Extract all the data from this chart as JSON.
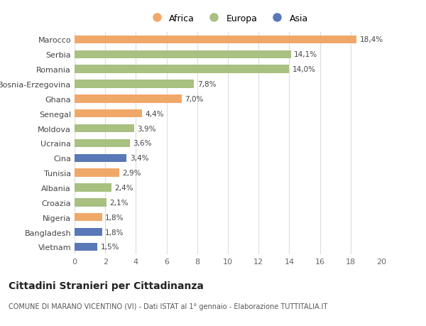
{
  "countries": [
    "Marocco",
    "Serbia",
    "Romania",
    "Bosnia-Erzegovina",
    "Ghana",
    "Senegal",
    "Moldova",
    "Ucraina",
    "Cina",
    "Tunisia",
    "Albania",
    "Croazia",
    "Nigeria",
    "Bangladesh",
    "Vietnam"
  ],
  "values": [
    18.4,
    14.1,
    14.0,
    7.8,
    7.0,
    4.4,
    3.9,
    3.6,
    3.4,
    2.9,
    2.4,
    2.1,
    1.8,
    1.8,
    1.5
  ],
  "labels": [
    "18,4%",
    "14,1%",
    "14,0%",
    "7,8%",
    "7,0%",
    "4,4%",
    "3,9%",
    "3,6%",
    "3,4%",
    "2,9%",
    "2,4%",
    "2,1%",
    "1,8%",
    "1,8%",
    "1,5%"
  ],
  "continent": [
    "Africa",
    "Europa",
    "Europa",
    "Europa",
    "Africa",
    "Africa",
    "Europa",
    "Europa",
    "Asia",
    "Africa",
    "Europa",
    "Europa",
    "Africa",
    "Asia",
    "Asia"
  ],
  "colors": {
    "Africa": "#F0A868",
    "Europa": "#A8C080",
    "Asia": "#5878B8"
  },
  "xlim": [
    0,
    20
  ],
  "xticks": [
    0,
    2,
    4,
    6,
    8,
    10,
    12,
    14,
    16,
    18,
    20
  ],
  "title": "Cittadini Stranieri per Cittadinanza",
  "subtitle": "COMUNE DI MARANO VICENTINO (VI) - Dati ISTAT al 1° gennaio - Elaborazione TUTTITALIA.IT",
  "background_color": "#ffffff",
  "grid_color": "#dddddd",
  "bar_height": 0.55
}
